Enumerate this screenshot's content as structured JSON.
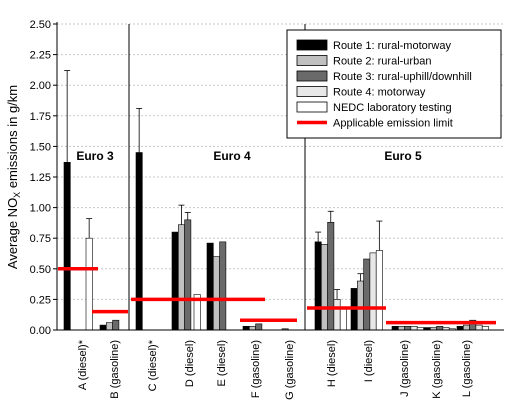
{
  "chart_data": {
    "type": "bar",
    "ylabel_main": "Average NO",
    "ylabel_sub": "X",
    "ylabel_tail": " emissions in g/km",
    "ylim": [
      0,
      2.5
    ],
    "yticks": [
      "0.00",
      "0.25",
      "0.50",
      "0.75",
      "1.00",
      "1.25",
      "1.50",
      "1.75",
      "2.00",
      "2.25",
      "2.50"
    ],
    "grid": true,
    "legend_position": "top-right",
    "categories": [
      "A (diesel)*",
      "B (gasoline)",
      "C (diesel)*",
      "D (diesel)",
      "E (diesel)",
      "F (gasoline)",
      "G (gasoline)",
      "H (diesel)",
      "I (diesel)",
      "J (gasoline)",
      "K (gasoline)",
      "L (gasoline)"
    ],
    "groups": [
      {
        "label": "Euro 3",
        "categories": [
          0,
          1
        ]
      },
      {
        "label": "Euro 4",
        "categories": [
          2,
          3,
          4,
          5,
          6
        ]
      },
      {
        "label": "Euro 5",
        "categories": [
          7,
          8,
          9,
          10,
          11
        ]
      }
    ],
    "series": [
      {
        "name": "Route 1: rural-motorway",
        "color": "#000000",
        "values": [
          1.37,
          0.04,
          1.45,
          0.8,
          0.71,
          0.03,
          0.0,
          0.72,
          0.34,
          0.03,
          0.02,
          0.03
        ],
        "errors": [
          0.75,
          0,
          0.36,
          0,
          0,
          0,
          0,
          0.08,
          0,
          0,
          0,
          0
        ]
      },
      {
        "name": "Route 2: rural-urban",
        "color": "#c0c0c0",
        "values": [
          0.0,
          0.06,
          0.0,
          0.86,
          0.6,
          0.03,
          0.0,
          0.7,
          0.4,
          0.03,
          0.02,
          0.04
        ],
        "errors": [
          0,
          0,
          0,
          0.16,
          0,
          0,
          0,
          0,
          0.06,
          0,
          0,
          0
        ]
      },
      {
        "name": "Route 3: rural-uphill/downhill",
        "color": "#6a6a6a",
        "values": [
          0.0,
          0.08,
          0.0,
          0.9,
          0.72,
          0.05,
          0.01,
          0.88,
          0.58,
          0.03,
          0.03,
          0.08
        ],
        "errors": [
          0,
          0,
          0,
          0.06,
          0,
          0,
          0,
          0.09,
          0,
          0,
          0,
          0
        ]
      },
      {
        "name": "Route 4: motorway",
        "color": "#e8e8e8",
        "values": [
          0.0,
          0.0,
          0.0,
          0.0,
          0.0,
          0.0,
          0.0,
          0.25,
          0.63,
          0.03,
          0.02,
          0.04
        ],
        "errors": [
          0,
          0,
          0,
          0,
          0,
          0,
          0,
          0.08,
          0,
          0,
          0,
          0
        ]
      },
      {
        "name": "NEDC laboratory testing",
        "color": "#ffffff",
        "values": [
          0.75,
          0.0,
          0.0,
          0.29,
          0.0,
          0.0,
          0.0,
          0.17,
          0.65,
          0.02,
          0.01,
          0.03
        ],
        "errors": [
          0.16,
          0,
          0,
          0,
          0,
          0,
          0,
          0,
          0.24,
          0,
          0,
          0
        ]
      }
    ],
    "limit_name": "Applicable emission limit",
    "limit_color": "#ff0000",
    "limits": [
      {
        "from": 0,
        "to": 0,
        "value": 0.5
      },
      {
        "from": 1,
        "to": 1,
        "value": 0.15
      },
      {
        "from": 2,
        "to": 4,
        "value": 0.25
      },
      {
        "from": 5,
        "to": 6,
        "value": 0.08
      },
      {
        "from": 7,
        "to": 8,
        "value": 0.18
      },
      {
        "from": 9,
        "to": 11,
        "value": 0.06
      }
    ]
  }
}
